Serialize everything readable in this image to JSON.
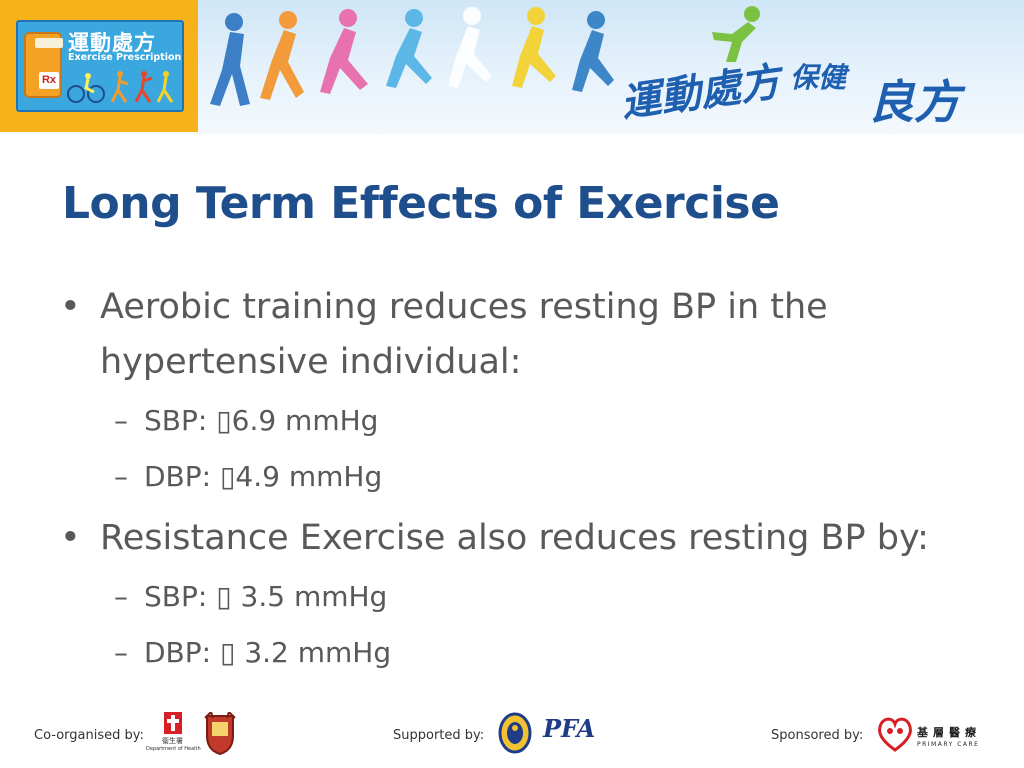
{
  "banner": {
    "logo_cn": "運動處方",
    "logo_en": "Exercise Prescription",
    "logo_rx": "Rx",
    "slogan_line1": "運動處方",
    "slogan_line2": "保健",
    "slogan_line3": "良方"
  },
  "slide": {
    "title": "Long Term Effects of Exercise",
    "bullets": [
      {
        "text_line1": "Aerobic training reduces resting BP in the",
        "text_line2": "hypertensive individual:",
        "sub": [
          {
            "label": "SBP: ",
            "value": "6.9 mmHg"
          },
          {
            "label": "DBP: ",
            "value": "4.9 mmHg"
          }
        ]
      },
      {
        "text_line1": "Resistance Exercise also reduces resting BP by:",
        "sub": [
          {
            "label": "SBP: ",
            "value": " 3.5 mmHg"
          },
          {
            "label": "DBP: ",
            "value": " 3.2 mmHg"
          }
        ]
      }
    ],
    "bullet_glyph": "•",
    "dash_glyph": "–",
    "arrow_glyph": "▯"
  },
  "footer": {
    "co_organised": "Co-organised by:",
    "supported": "Supported by:",
    "sponsored": "Sponsored by:",
    "sponsor_text": "基層醫療",
    "sponsor_sub": "PRIMARY CARE",
    "doh_cn": "衞生署",
    "doh_en": "Department of Health",
    "hkpfa": "PFA"
  },
  "colors": {
    "title": "#1f4e8c",
    "body": "#595959",
    "logo_bg": "#f7b21a",
    "logo_blue": "#3aa7de"
  }
}
